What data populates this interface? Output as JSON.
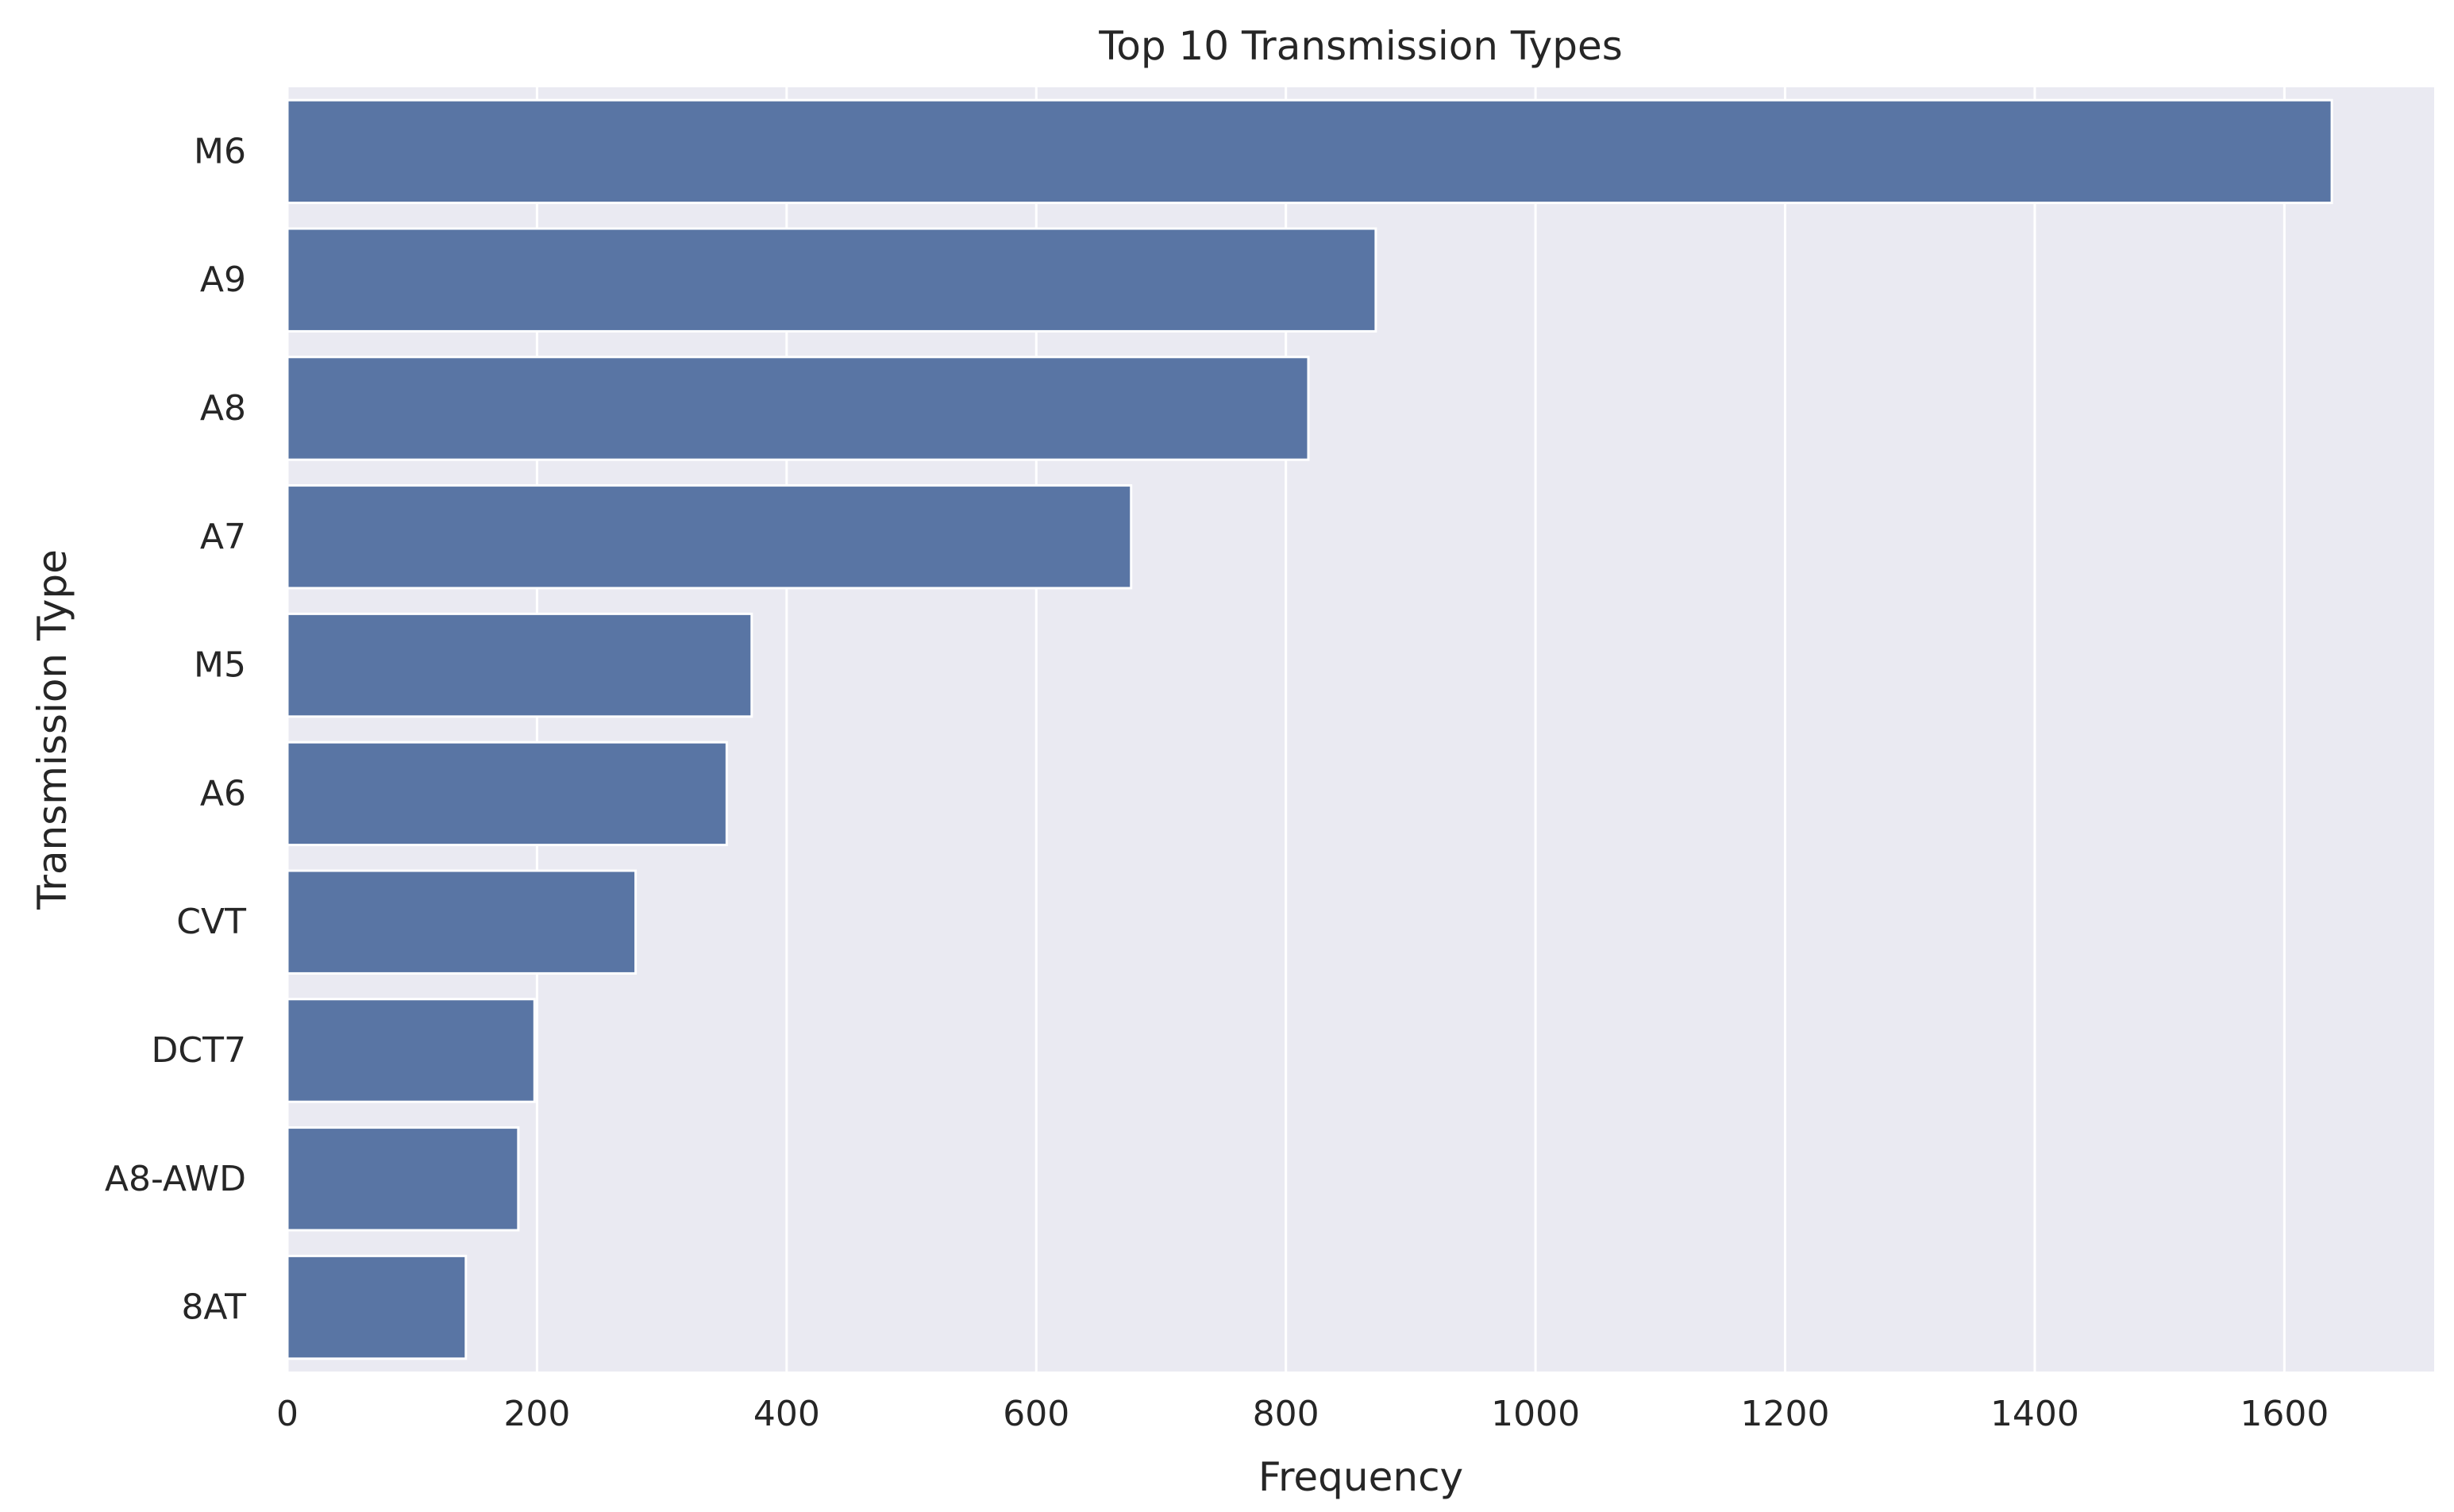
{
  "chart_data": {
    "type": "bar",
    "orientation": "horizontal",
    "title": "Top 10 Transmission Types",
    "xlabel": "Frequency",
    "ylabel": "Transmission Type",
    "categories": [
      "M6",
      "A9",
      "A8",
      "A7",
      "M5",
      "A6",
      "CVT",
      "DCT7",
      "A8-AWD",
      "8AT"
    ],
    "values": [
      1638,
      872,
      818,
      676,
      372,
      352,
      279,
      198,
      185,
      143
    ],
    "xlim": [
      0,
      1720
    ],
    "xticks": [
      0,
      200,
      400,
      600,
      800,
      1000,
      1200,
      1400,
      1600
    ],
    "grid": true,
    "legend": "none",
    "colors": {
      "bar": "#5975a4",
      "plot_background": "#eaeaf2",
      "grid": "#ffffff",
      "text": "#262626"
    }
  }
}
